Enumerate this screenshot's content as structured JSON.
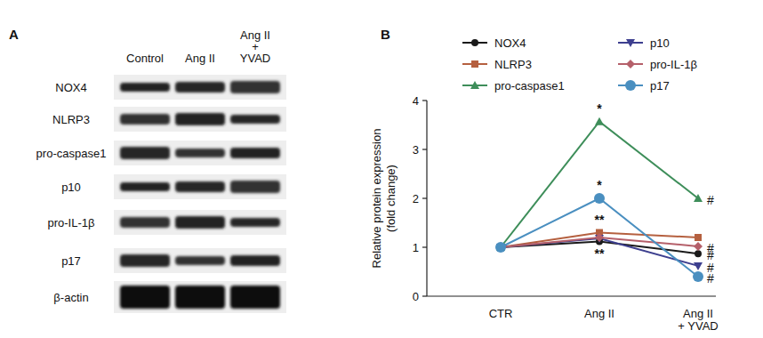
{
  "panel_labels": [
    "A",
    "B"
  ],
  "blot": {
    "lanes": [
      "Control",
      "Ang II",
      "Ang II\n+\nYVAD"
    ],
    "rows": [
      "NOX4",
      "NLRP3",
      "pro-caspase1",
      "p10",
      "pro-IL-1β",
      "p17",
      "β-actin"
    ]
  },
  "chart_data": {
    "type": "line",
    "y_label": "Relative protein expression\n(fold change)",
    "categories": [
      "CTR",
      "Ang II",
      "Ang II\n+ YVAD"
    ],
    "ylim": [
      0,
      4
    ],
    "yticks": [
      0,
      1,
      2,
      3,
      4
    ],
    "grid": false,
    "legend": "top-left",
    "series": [
      {
        "name": "NOX4",
        "color": "#1a1a1a",
        "marker": "circle",
        "values": [
          1,
          1.12,
          0.87
        ],
        "significance": [
          null,
          "**",
          "#"
        ]
      },
      {
        "name": "NLRP3",
        "color": "#b5603f",
        "marker": "square",
        "values": [
          1,
          1.3,
          1.2
        ],
        "significance": [
          null,
          "**",
          null
        ]
      },
      {
        "name": "pro-caspase1",
        "color": "#3e8e5a",
        "marker": "triangle",
        "values": [
          1,
          3.57,
          2.0
        ],
        "significance": [
          null,
          "*",
          "#"
        ]
      },
      {
        "name": "p10",
        "color": "#3d3f8f",
        "marker": "triangle-down",
        "values": [
          1,
          1.18,
          0.62
        ],
        "significance": [
          null,
          null,
          "#"
        ]
      },
      {
        "name": "pro-IL-1β",
        "color": "#b5606a",
        "marker": "diamond",
        "values": [
          1,
          1.2,
          1.02
        ],
        "significance": [
          null,
          null,
          "#"
        ]
      },
      {
        "name": "p17",
        "color": "#4a8fc0",
        "marker": "big-circle",
        "values": [
          1,
          2.0,
          0.4
        ],
        "significance": [
          null,
          "*",
          "#"
        ]
      }
    ]
  }
}
